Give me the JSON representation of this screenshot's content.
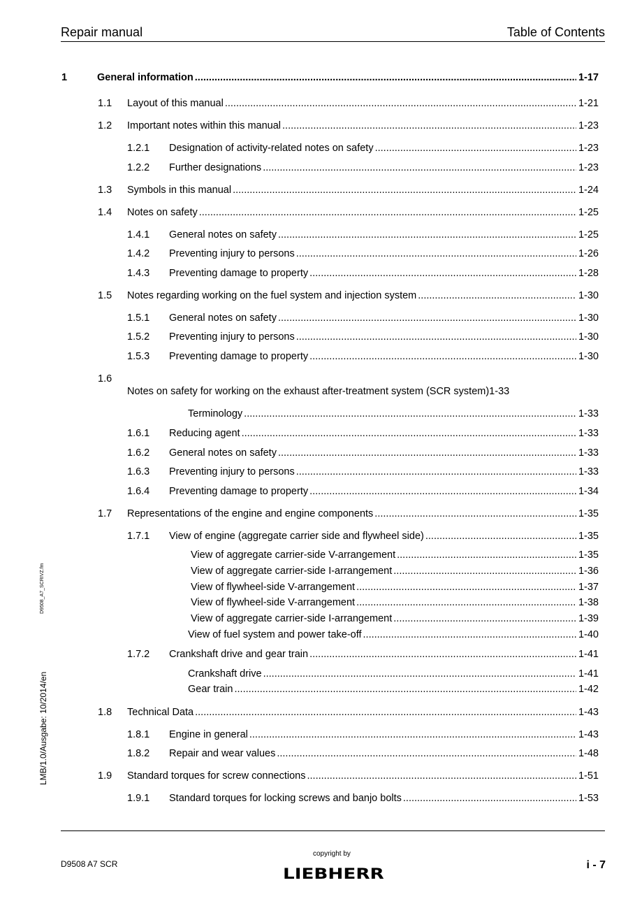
{
  "header": {
    "left": "Repair manual",
    "right": "Table of Contents"
  },
  "toc": [
    {
      "num": "1",
      "title": "General information",
      "page": "1-17",
      "level": 1
    },
    {
      "num": "1.1",
      "title": "Layout of this manual",
      "page": "1-21",
      "level": 2
    },
    {
      "num": "1.2",
      "title": "Important notes within this manual",
      "page": "1-23",
      "level": 2
    },
    {
      "num": "1.2.1",
      "title": "Designation of activity-related notes on safety",
      "page": "1-23",
      "level": 3
    },
    {
      "num": "1.2.2",
      "title": "Further designations",
      "page": "1-23",
      "level": 3
    },
    {
      "num": "1.3",
      "title": "Symbols in this manual",
      "page": "1-24",
      "level": 2
    },
    {
      "num": "1.4",
      "title": "Notes on safety",
      "page": "1-25",
      "level": 2
    },
    {
      "num": "1.4.1",
      "title": "General notes on safety",
      "page": "1-25",
      "level": 3
    },
    {
      "num": "1.4.2",
      "title": "Preventing injury to persons",
      "page": "1-26",
      "level": 3
    },
    {
      "num": "1.4.3",
      "title": "Preventing damage to property",
      "page": "1-28",
      "level": 3
    },
    {
      "num": "1.5",
      "title": "Notes regarding working on the fuel system and injection system",
      "page": "1-30",
      "level": 2
    },
    {
      "num": "1.5.1",
      "title": "General notes on safety",
      "page": "1-30",
      "level": 3
    },
    {
      "num": "1.5.2",
      "title": "Preventing injury to persons",
      "page": "1-30",
      "level": 3
    },
    {
      "num": "1.5.3",
      "title": "Preventing damage to property",
      "page": "1-30",
      "level": 3
    },
    {
      "num": "1.6",
      "title": "Notes on safety for working on the exhaust after-treatment system (SCR system)1-33",
      "page": "",
      "level": 2
    },
    {
      "num": "",
      "title": "Terminology",
      "page": "1-33",
      "level": 4
    },
    {
      "num": "1.6.1",
      "title": "Reducing agent",
      "page": "1-33",
      "level": 3
    },
    {
      "num": "1.6.2",
      "title": "General notes on safety",
      "page": "1-33",
      "level": 3
    },
    {
      "num": "1.6.3",
      "title": "Preventing injury to persons",
      "page": "1-33",
      "level": 3
    },
    {
      "num": "1.6.4",
      "title": "Preventing damage to property",
      "page": "1-34",
      "level": 3
    },
    {
      "num": "1.7",
      "title": "Representations of the engine and engine components",
      "page": "1-35",
      "level": 2
    },
    {
      "num": "1.7.1",
      "title": "View of engine (aggregate carrier side and flywheel side)",
      "page": "1-35",
      "level": 3
    },
    {
      "num": "",
      "title": "View of aggregate carrier-side V-arrangement",
      "page": "1-35",
      "level": 4
    },
    {
      "num": "",
      "title": "View of aggregate carrier-side I-arrangement",
      "page": "1-36",
      "level": 4
    },
    {
      "num": "",
      "title": "View of flywheel-side V-arrangement",
      "page": "1-37",
      "level": 4
    },
    {
      "num": "",
      "title": "View of flywheel-side V-arrangement",
      "page": "1-38",
      "level": 4
    },
    {
      "num": "",
      "title": "View of aggregate carrier-side I-arrangement",
      "page": "1-39",
      "level": 4
    },
    {
      "num": "",
      "title": "View of fuel system and power take-off",
      "page": "1-40",
      "level": 4
    },
    {
      "num": "1.7.2",
      "title": "Crankshaft drive and gear train",
      "page": "1-41",
      "level": 3
    },
    {
      "num": "",
      "title": "Crankshaft drive",
      "page": "1-41",
      "level": 4
    },
    {
      "num": "",
      "title": "Gear train",
      "page": "1-42",
      "level": 4
    },
    {
      "num": "1.8",
      "title": "Technical Data",
      "page": "1-43",
      "level": 2
    },
    {
      "num": "1.8.1",
      "title": "Engine in general",
      "page": "1-43",
      "level": 3
    },
    {
      "num": "1.8.2",
      "title": "Repair and wear values",
      "page": "1-48",
      "level": 3
    },
    {
      "num": "1.9",
      "title": "Standard torques for screw connections",
      "page": "1-51",
      "level": 2
    },
    {
      "num": "1.9.1",
      "title": "Standard torques for locking screws and banjo bolts",
      "page": "1-53",
      "level": 3
    }
  ],
  "side": {
    "file": "D9508_A7_SCRIVZ.fm",
    "edition": "LMB/1.0/Ausgabe: 10/2014/en"
  },
  "footer": {
    "doc": "D9508 A7 SCR",
    "copyright": "copyright by",
    "logo": "LIEBHERR",
    "page": "i - 7"
  }
}
